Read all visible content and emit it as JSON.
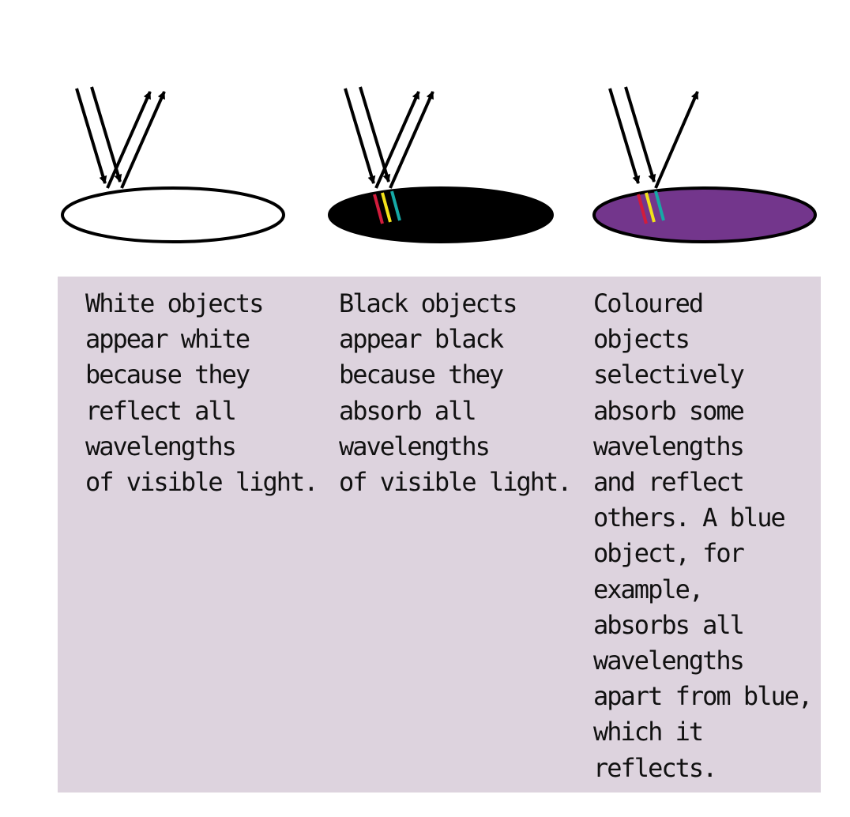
{
  "panels": [
    {
      "id": "white",
      "object_fill": "#ffffff",
      "object_stroke": "#000000",
      "reflected_rays": 2,
      "absorbed_bands": [],
      "caption": "White objects\nappear white\nbecause they\nreflect all\nwavelengths\nof visible light."
    },
    {
      "id": "black",
      "object_fill": "#000000",
      "object_stroke": "#000000",
      "reflected_rays": 2,
      "absorbed_bands": [
        "#d21c3c",
        "#f2e21a",
        "#16a9a6"
      ],
      "caption": "Black objects\nappear black\nbecause they\nabsorb all\nwavelengths\nof visible light."
    },
    {
      "id": "coloured",
      "object_fill": "#73368c",
      "object_stroke": "#000000",
      "reflected_rays": 1,
      "absorbed_bands": [
        "#d21c3c",
        "#f2e21a",
        "#16a9a6"
      ],
      "caption": "Coloured\nobjects\nselectively\nabsorb some\nwavelengths\nand reflect\nothers. A blue\nobject, for\nexample,\nabsorbs all\nwavelengths\napart from blue,\nwhich it\nreflects."
    }
  ],
  "colors": {
    "caption_background": "#ddd3de",
    "ray": "#000000"
  }
}
